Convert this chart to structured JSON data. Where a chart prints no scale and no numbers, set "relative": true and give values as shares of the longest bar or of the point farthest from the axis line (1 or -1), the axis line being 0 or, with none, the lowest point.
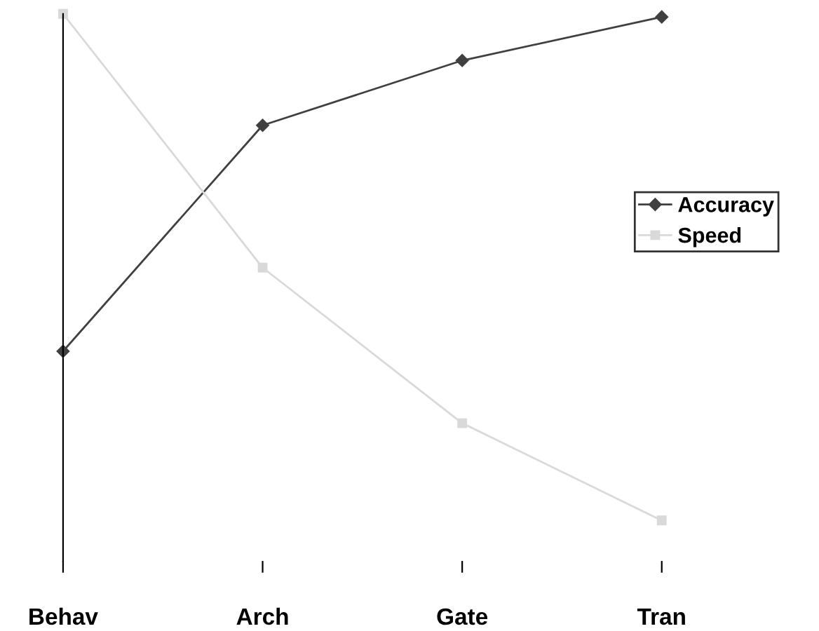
{
  "chart_data": {
    "type": "line",
    "relative": true,
    "categories": [
      "Behav",
      "Arch",
      "Gate",
      "Tran"
    ],
    "series": [
      {
        "name": "Accuracy",
        "color": "#404040",
        "marker": "diamond",
        "values": [
          0.334,
          0.78,
          0.908,
          0.994
        ]
      },
      {
        "name": "Speed",
        "color": "#d9d9d9",
        "marker": "square",
        "values": [
          1,
          0.499,
          0.192,
          0
        ]
      }
    ],
    "legend": "right"
  }
}
